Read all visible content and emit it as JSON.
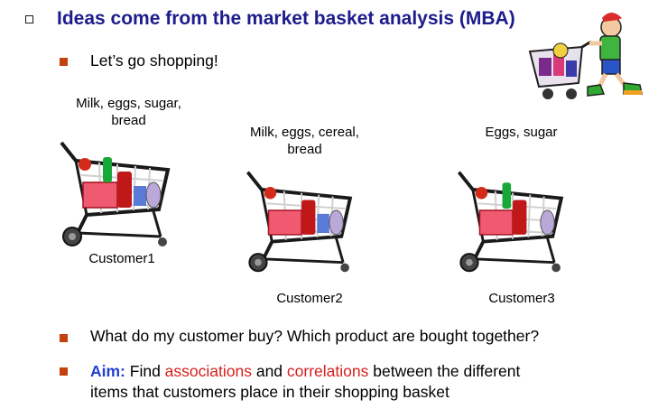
{
  "slide": {
    "title": "Ideas come from the market basket analysis (MBA)",
    "intro": "Let’s go shopping!"
  },
  "carts": [
    {
      "items": "Milk, eggs, sugar, bread",
      "customer": "Customer1"
    },
    {
      "items": "Milk, eggs, cereal, bread",
      "customer": "Customer2"
    },
    {
      "items": "Eggs, sugar",
      "customer": "Customer3"
    }
  ],
  "bullets": {
    "question": "What do my customer buy? Which product are bought together?",
    "aim_label": "Aim:",
    "aim_1": " Find ",
    "aim_associations": "associations",
    "aim_2": " and ",
    "aim_correlations": "correlations",
    "aim_3": " between the different",
    "aim_line2": "items that customers place in their shopping basket"
  },
  "colors": {
    "title": "#1c1c8c",
    "bullet": "#c2410c",
    "aim": "#1f3fd1",
    "highlight": "#d41f1f"
  },
  "icons": {
    "clipart": "shopper-with-cart-icon",
    "cart": "shopping-cart-icon"
  }
}
